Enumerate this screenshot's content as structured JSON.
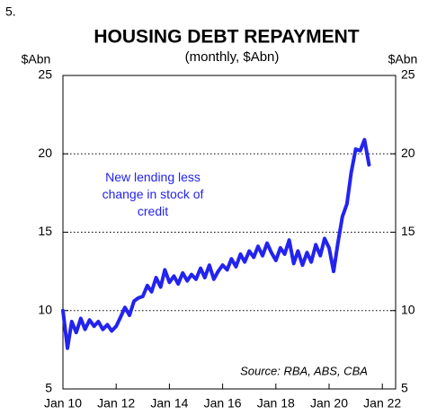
{
  "chart_data": {
    "type": "line",
    "figure_number": "5.",
    "title": "HOUSING DEBT REPAYMENT",
    "subtitle": "(monthly, $Abn)",
    "ylabel": "$Abn",
    "y2label": "$Abn",
    "annotation": [
      "New lending less",
      "change in stock of",
      "credit"
    ],
    "source": "Source: RBA, ABS, CBA",
    "grid": true,
    "xlim": [
      2010,
      2022.5
    ],
    "xticks": [
      {
        "value": 2010,
        "label": "Jan 10"
      },
      {
        "value": 2012,
        "label": "Jan 12"
      },
      {
        "value": 2014,
        "label": "Jan 14"
      },
      {
        "value": 2016,
        "label": "Jan 16"
      },
      {
        "value": 2018,
        "label": "Jan 18"
      },
      {
        "value": 2020,
        "label": "Jan 20"
      },
      {
        "value": 2022,
        "label": "Jan 22"
      }
    ],
    "ylim": [
      5,
      25
    ],
    "yticks": [
      5,
      10,
      15,
      20,
      25
    ],
    "y2lim": [
      5,
      25
    ],
    "y2ticks": [
      5,
      10,
      15,
      20,
      25
    ],
    "x": [
      2010.0,
      2010.17,
      2010.33,
      2010.5,
      2010.67,
      2010.83,
      2011.0,
      2011.17,
      2011.33,
      2011.5,
      2011.67,
      2011.83,
      2012.0,
      2012.17,
      2012.33,
      2012.5,
      2012.67,
      2012.83,
      2013.0,
      2013.17,
      2013.33,
      2013.5,
      2013.67,
      2013.83,
      2014.0,
      2014.17,
      2014.33,
      2014.5,
      2014.67,
      2014.83,
      2015.0,
      2015.17,
      2015.33,
      2015.5,
      2015.67,
      2015.83,
      2016.0,
      2016.17,
      2016.33,
      2016.5,
      2016.67,
      2016.83,
      2017.0,
      2017.17,
      2017.33,
      2017.5,
      2017.67,
      2017.83,
      2018.0,
      2018.17,
      2018.33,
      2018.5,
      2018.67,
      2018.83,
      2019.0,
      2019.17,
      2019.33,
      2019.5,
      2019.67,
      2019.83,
      2020.0,
      2020.17,
      2020.33,
      2020.5,
      2020.67,
      2020.83,
      2021.0,
      2021.17,
      2021.33,
      2021.5
    ],
    "series": [
      {
        "color": "#2323f0",
        "values": [
          10.0,
          7.6,
          9.3,
          8.6,
          9.5,
          8.8,
          9.4,
          9.0,
          9.3,
          8.8,
          9.1,
          8.7,
          9.0,
          9.6,
          10.2,
          9.7,
          10.6,
          10.8,
          10.9,
          11.6,
          11.2,
          12.1,
          11.5,
          12.6,
          11.8,
          12.2,
          11.7,
          12.4,
          11.9,
          12.3,
          12.0,
          12.7,
          12.1,
          12.9,
          12.0,
          12.5,
          12.9,
          12.6,
          13.3,
          12.8,
          13.6,
          13.1,
          13.8,
          13.4,
          14.1,
          13.5,
          14.3,
          13.7,
          13.2,
          14.0,
          13.6,
          14.5,
          13.0,
          13.8,
          12.9,
          13.7,
          13.1,
          14.2,
          13.5,
          14.6,
          14.0,
          12.5,
          14.3,
          16.0,
          16.8,
          18.8,
          20.3,
          20.2,
          20.9,
          19.3
        ]
      }
    ]
  }
}
